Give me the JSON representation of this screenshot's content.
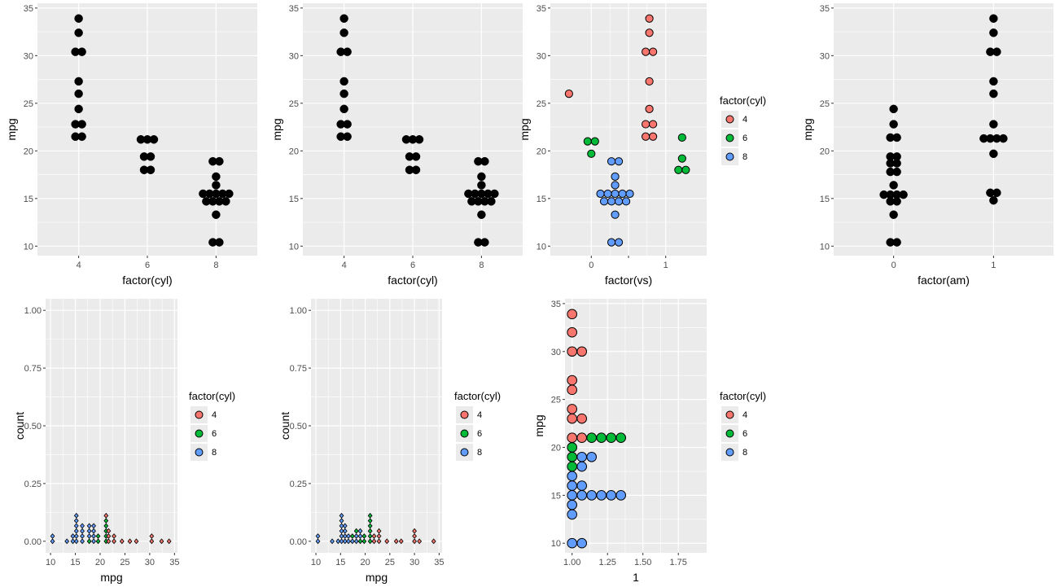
{
  "palette": {
    "4": "#F8766D",
    "6": "#00BA38",
    "8": "#619CFF",
    "black": "#000000",
    "panel": "#EBEBEB",
    "grid": "#FFFFFF"
  },
  "chart_data": [
    {
      "id": "p1",
      "type": "dotplot",
      "title": "",
      "xlabel": "factor(cyl)",
      "ylabel": "mpg",
      "categories": [
        "4",
        "6",
        "8"
      ],
      "ylim": [
        9,
        35.5
      ],
      "yticks": [
        10,
        15,
        20,
        25,
        30,
        35
      ],
      "fill": "black",
      "points": [
        {
          "x": "4",
          "y": 33.9,
          "n": 1
        },
        {
          "x": "4",
          "y": 32.4,
          "n": 1
        },
        {
          "x": "4",
          "y": 30.4,
          "n": 2
        },
        {
          "x": "4",
          "y": 27.3,
          "n": 1
        },
        {
          "x": "4",
          "y": 26.0,
          "n": 1
        },
        {
          "x": "4",
          "y": 24.4,
          "n": 1
        },
        {
          "x": "4",
          "y": 22.8,
          "n": 2
        },
        {
          "x": "4",
          "y": 21.5,
          "n": 2
        },
        {
          "x": "6",
          "y": 21.2,
          "n": 3
        },
        {
          "x": "6",
          "y": 19.4,
          "n": 2
        },
        {
          "x": "6",
          "y": 18.0,
          "n": 2
        },
        {
          "x": "8",
          "y": 18.9,
          "n": 2
        },
        {
          "x": "8",
          "y": 17.3,
          "n": 1
        },
        {
          "x": "8",
          "y": 16.4,
          "n": 1
        },
        {
          "x": "8",
          "y": 15.5,
          "n": 5
        },
        {
          "x": "8",
          "y": 14.7,
          "n": 4
        },
        {
          "x": "8",
          "y": 13.3,
          "n": 1
        },
        {
          "x": "8",
          "y": 10.4,
          "n": 2
        }
      ]
    },
    {
      "id": "p2",
      "type": "dotplot",
      "title": "",
      "xlabel": "factor(cyl)",
      "ylabel": "mpg",
      "categories": [
        "4",
        "6",
        "8"
      ],
      "ylim": [
        9,
        35.5
      ],
      "yticks": [
        10,
        15,
        20,
        25,
        30,
        35
      ],
      "fill": "black",
      "points": [
        {
          "x": "4",
          "y": 33.9,
          "n": 1
        },
        {
          "x": "4",
          "y": 32.4,
          "n": 1
        },
        {
          "x": "4",
          "y": 30.4,
          "n": 2
        },
        {
          "x": "4",
          "y": 27.3,
          "n": 1
        },
        {
          "x": "4",
          "y": 26.0,
          "n": 1
        },
        {
          "x": "4",
          "y": 24.4,
          "n": 1
        },
        {
          "x": "4",
          "y": 22.8,
          "n": 2
        },
        {
          "x": "4",
          "y": 21.5,
          "n": 2
        },
        {
          "x": "6",
          "y": 21.2,
          "n": 3
        },
        {
          "x": "6",
          "y": 19.4,
          "n": 2
        },
        {
          "x": "6",
          "y": 18.0,
          "n": 2
        },
        {
          "x": "8",
          "y": 18.9,
          "n": 2
        },
        {
          "x": "8",
          "y": 17.3,
          "n": 1
        },
        {
          "x": "8",
          "y": 16.4,
          "n": 1
        },
        {
          "x": "8",
          "y": 15.5,
          "n": 5
        },
        {
          "x": "8",
          "y": 14.7,
          "n": 4
        },
        {
          "x": "8",
          "y": 13.3,
          "n": 1
        },
        {
          "x": "8",
          "y": 10.4,
          "n": 2
        }
      ]
    },
    {
      "id": "p3",
      "type": "dotplot",
      "title": "",
      "xlabel": "factor(vs)",
      "ylabel": "mpg",
      "x_numeric": true,
      "xlim": [
        -0.55,
        1.55
      ],
      "xticks": [
        0,
        0.5,
        1
      ],
      "xticklabels": [
        "0",
        "",
        "1"
      ],
      "ylim": [
        9,
        35.5
      ],
      "yticks": [
        10,
        15,
        20,
        25,
        30,
        35
      ],
      "legend": {
        "title": "factor(cyl)",
        "entries": [
          "4",
          "6",
          "8"
        ]
      },
      "points": [
        {
          "x": -0.3,
          "y": 26.0,
          "n": 1,
          "g": "4"
        },
        {
          "x": 0.0,
          "y": 21.0,
          "n": 2,
          "g": "6"
        },
        {
          "x": 0.0,
          "y": 19.7,
          "n": 1,
          "g": "6"
        },
        {
          "x": 0.32,
          "y": 18.9,
          "n": 2,
          "g": "8"
        },
        {
          "x": 0.32,
          "y": 17.3,
          "n": 1,
          "g": "8"
        },
        {
          "x": 0.32,
          "y": 16.4,
          "n": 1,
          "g": "8"
        },
        {
          "x": 0.32,
          "y": 15.5,
          "n": 5,
          "g": "8"
        },
        {
          "x": 0.32,
          "y": 14.7,
          "n": 4,
          "g": "8"
        },
        {
          "x": 0.32,
          "y": 13.3,
          "n": 1,
          "g": "8"
        },
        {
          "x": 0.32,
          "y": 10.4,
          "n": 2,
          "g": "8"
        },
        {
          "x": 0.78,
          "y": 33.9,
          "n": 1,
          "g": "4"
        },
        {
          "x": 0.78,
          "y": 32.4,
          "n": 1,
          "g": "4"
        },
        {
          "x": 0.78,
          "y": 30.4,
          "n": 2,
          "g": "4"
        },
        {
          "x": 0.78,
          "y": 27.3,
          "n": 1,
          "g": "4"
        },
        {
          "x": 0.78,
          "y": 24.4,
          "n": 1,
          "g": "4"
        },
        {
          "x": 0.78,
          "y": 22.8,
          "n": 2,
          "g": "4"
        },
        {
          "x": 0.78,
          "y": 21.5,
          "n": 2,
          "g": "4"
        },
        {
          "x": 1.22,
          "y": 21.4,
          "n": 1,
          "g": "6"
        },
        {
          "x": 1.22,
          "y": 19.2,
          "n": 1,
          "g": "6"
        },
        {
          "x": 1.22,
          "y": 18.0,
          "n": 2,
          "g": "6"
        }
      ]
    },
    {
      "id": "p4",
      "type": "dotplot",
      "title": "",
      "xlabel": "factor(am)",
      "ylabel": "mpg",
      "categories": [
        "0",
        "1"
      ],
      "ylim": [
        9,
        35.5
      ],
      "yticks": [
        10,
        15,
        20,
        25,
        30,
        35
      ],
      "fill": "black",
      "points": [
        {
          "x": "0",
          "y": 24.4,
          "n": 1
        },
        {
          "x": "0",
          "y": 22.8,
          "n": 1
        },
        {
          "x": "0",
          "y": 21.4,
          "n": 2
        },
        {
          "x": "0",
          "y": 19.4,
          "n": 2
        },
        {
          "x": "0",
          "y": 18.7,
          "n": 2
        },
        {
          "x": "0",
          "y": 17.8,
          "n": 2
        },
        {
          "x": "0",
          "y": 16.4,
          "n": 1
        },
        {
          "x": "0",
          "y": 15.4,
          "n": 4
        },
        {
          "x": "0",
          "y": 14.7,
          "n": 2
        },
        {
          "x": "0",
          "y": 13.3,
          "n": 1
        },
        {
          "x": "0",
          "y": 10.4,
          "n": 2
        },
        {
          "x": "1",
          "y": 33.9,
          "n": 1
        },
        {
          "x": "1",
          "y": 32.4,
          "n": 1
        },
        {
          "x": "1",
          "y": 30.4,
          "n": 2
        },
        {
          "x": "1",
          "y": 27.3,
          "n": 1
        },
        {
          "x": "1",
          "y": 26.0,
          "n": 1
        },
        {
          "x": "1",
          "y": 22.8,
          "n": 1
        },
        {
          "x": "1",
          "y": 21.3,
          "n": 4
        },
        {
          "x": "1",
          "y": 19.7,
          "n": 1
        },
        {
          "x": "1",
          "y": 15.6,
          "n": 2
        },
        {
          "x": "1",
          "y": 14.8,
          "n": 1
        }
      ]
    },
    {
      "id": "p5",
      "type": "dotplot",
      "title": "",
      "xlabel": "mpg",
      "ylabel": "count",
      "xlim": [
        9,
        35.6
      ],
      "xticks": [
        10,
        15,
        20,
        25,
        30,
        35
      ],
      "ylim": [
        -0.05,
        1.05
      ],
      "yticks": [
        0,
        0.25,
        0.5,
        0.75,
        1
      ],
      "yticklabels": [
        "0.00",
        "0.25",
        "0.50",
        "0.75",
        "1.00"
      ],
      "legend": {
        "title": "factor(cyl)",
        "entries": [
          "4",
          "6",
          "8"
        ]
      },
      "stacks": [
        {
          "x": 10.4,
          "g": [
            "8",
            "8"
          ]
        },
        {
          "x": 13.3,
          "g": [
            "8"
          ]
        },
        {
          "x": 14.5,
          "g": [
            "8",
            "8"
          ]
        },
        {
          "x": 15.2,
          "g": [
            "8",
            "8",
            "8",
            "8",
            "8",
            "8"
          ]
        },
        {
          "x": 16.4,
          "g": [
            "8",
            "8",
            "8",
            "8"
          ]
        },
        {
          "x": 17.8,
          "g": [
            "6",
            "8",
            "8",
            "8"
          ]
        },
        {
          "x": 18.7,
          "g": [
            "8",
            "8",
            "8",
            "8"
          ]
        },
        {
          "x": 19.6,
          "g": [
            "6",
            "6"
          ]
        },
        {
          "x": 21.2,
          "g": [
            "6",
            "6",
            "6",
            "6",
            "6",
            "4"
          ]
        },
        {
          "x": 21.7,
          "g": [
            "4",
            "4",
            "4"
          ]
        },
        {
          "x": 22.8,
          "g": [
            "4",
            "4"
          ]
        },
        {
          "x": 24.4,
          "g": [
            "4"
          ]
        },
        {
          "x": 26.0,
          "g": [
            "4"
          ]
        },
        {
          "x": 27.3,
          "g": [
            "4"
          ]
        },
        {
          "x": 30.4,
          "g": [
            "4",
            "4"
          ]
        },
        {
          "x": 32.4,
          "g": [
            "4"
          ]
        },
        {
          "x": 33.9,
          "g": [
            "4"
          ]
        }
      ]
    },
    {
      "id": "p6",
      "type": "dotplot",
      "title": "",
      "xlabel": "mpg",
      "ylabel": "count",
      "xlim": [
        9,
        35.6
      ],
      "xticks": [
        10,
        15,
        20,
        25,
        30,
        35
      ],
      "ylim": [
        -0.05,
        1.05
      ],
      "yticks": [
        0,
        0.25,
        0.5,
        0.75,
        1
      ],
      "yticklabels": [
        "0.00",
        "0.25",
        "0.50",
        "0.75",
        "1.00"
      ],
      "legend": {
        "title": "factor(cyl)",
        "entries": [
          "4",
          "6",
          "8"
        ]
      },
      "stacks": [
        {
          "x": 10.4,
          "g": [
            "8",
            "8"
          ]
        },
        {
          "x": 13.3,
          "g": [
            "8"
          ]
        },
        {
          "x": 14.5,
          "g": [
            "8"
          ]
        },
        {
          "x": 15.2,
          "g": [
            "8",
            "8",
            "8",
            "8",
            "8",
            "8"
          ]
        },
        {
          "x": 15.9,
          "g": [
            "8",
            "8",
            "8",
            "8"
          ]
        },
        {
          "x": 16.6,
          "g": [
            "8",
            "8"
          ]
        },
        {
          "x": 17.4,
          "g": [
            "8",
            "6"
          ]
        },
        {
          "x": 18.2,
          "g": [
            "8",
            "8",
            "6"
          ]
        },
        {
          "x": 19.0,
          "g": [
            "6",
            "8",
            "8"
          ]
        },
        {
          "x": 19.8,
          "g": [
            "6",
            "6"
          ]
        },
        {
          "x": 21.0,
          "g": [
            "6",
            "6",
            "6",
            "6",
            "6",
            "6"
          ]
        },
        {
          "x": 21.8,
          "g": [
            "4",
            "4"
          ]
        },
        {
          "x": 22.8,
          "g": [
            "4",
            "4",
            "4"
          ]
        },
        {
          "x": 24.4,
          "g": [
            "4"
          ]
        },
        {
          "x": 26.3,
          "g": [
            "4"
          ]
        },
        {
          "x": 27.3,
          "g": [
            "4"
          ]
        },
        {
          "x": 30.0,
          "g": [
            "4",
            "4",
            "4"
          ]
        },
        {
          "x": 31.0,
          "g": [
            "4"
          ]
        },
        {
          "x": 33.9,
          "g": [
            "4"
          ]
        }
      ]
    },
    {
      "id": "p7",
      "type": "dotplot",
      "title": "",
      "xlabel": "1",
      "ylabel": "mpg",
      "xlim": [
        0.95,
        1.95
      ],
      "xticks": [
        1,
        1.25,
        1.5,
        1.75
      ],
      "xticklabels": [
        "1.00",
        "1.25",
        "1.50",
        "1.75"
      ],
      "ylim": [
        9,
        35.5
      ],
      "yticks": [
        10,
        15,
        20,
        25,
        30,
        35
      ],
      "legend": {
        "title": "factor(cyl)",
        "entries": [
          "4",
          "6",
          "8"
        ]
      },
      "rows": [
        {
          "y": 33.9,
          "g": [
            "4"
          ]
        },
        {
          "y": 32.0,
          "g": [
            "4"
          ]
        },
        {
          "y": 30.0,
          "g": [
            "4",
            "4"
          ]
        },
        {
          "y": 27.0,
          "g": [
            "4"
          ]
        },
        {
          "y": 26.0,
          "g": [
            "4"
          ]
        },
        {
          "y": 24.0,
          "g": [
            "4"
          ]
        },
        {
          "y": 23.0,
          "g": [
            "4",
            "4"
          ]
        },
        {
          "y": 21.0,
          "g": [
            "4",
            "4",
            "6",
            "6",
            "6",
            "6"
          ]
        },
        {
          "y": 20.0,
          "g": [
            "6"
          ]
        },
        {
          "y": 19.0,
          "g": [
            "6",
            "8",
            "8"
          ]
        },
        {
          "y": 18.0,
          "g": [
            "6",
            "8"
          ]
        },
        {
          "y": 17.0,
          "g": [
            "8"
          ]
        },
        {
          "y": 16.0,
          "g": [
            "8",
            "8"
          ]
        },
        {
          "y": 15.0,
          "g": [
            "8",
            "8",
            "8",
            "8",
            "8",
            "8"
          ]
        },
        {
          "y": 14.0,
          "g": [
            "8"
          ]
        },
        {
          "y": 13.0,
          "g": [
            "8"
          ]
        },
        {
          "y": 10.0,
          "g": [
            "8",
            "8"
          ]
        }
      ]
    }
  ]
}
